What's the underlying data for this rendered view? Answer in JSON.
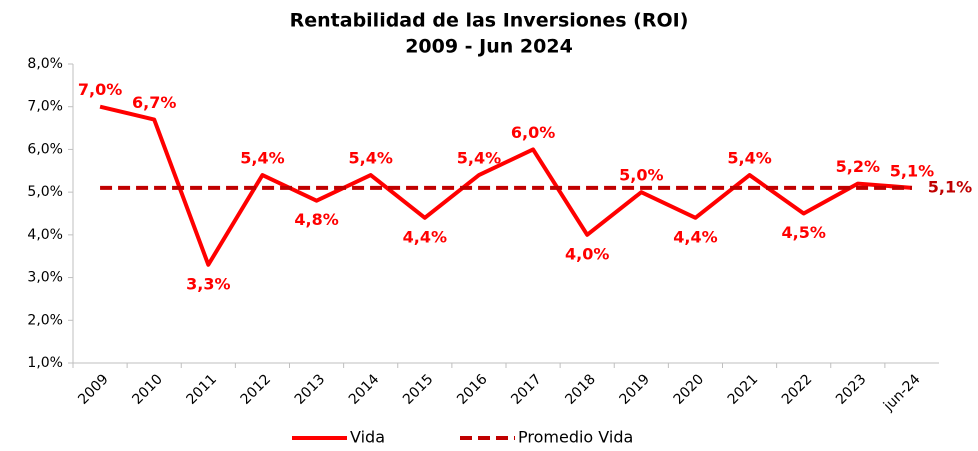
{
  "chart_data": {
    "type": "line",
    "title": "Rentabilidad de las Inversiones (ROI)",
    "subtitle": "2009 - Jun 2024",
    "categories": [
      "2009",
      "2010",
      "2011",
      "2012",
      "2013",
      "2014",
      "2015",
      "2016",
      "2017",
      "2018",
      "2019",
      "2020",
      "2021",
      "2022",
      "2023",
      "jun-24"
    ],
    "series": [
      {
        "name": "Vida",
        "color": "#ff0000",
        "dash": false,
        "values": [
          7.0,
          6.7,
          3.3,
          5.4,
          4.8,
          5.4,
          4.4,
          5.4,
          6.0,
          4.0,
          5.0,
          4.4,
          5.4,
          4.5,
          5.2,
          5.1
        ],
        "value_labels": [
          "7,0%",
          "6,7%",
          "3,3%",
          "5,4%",
          "4,8%",
          "5,4%",
          "4,4%",
          "5,4%",
          "6,0%",
          "4,0%",
          "5,0%",
          "4,4%",
          "5,4%",
          "4,5%",
          "5,2%",
          "5,1%"
        ]
      },
      {
        "name": "Promedio Vida",
        "color": "#c00000",
        "dash": true,
        "values": [
          5.1,
          5.1,
          5.1,
          5.1,
          5.1,
          5.1,
          5.1,
          5.1,
          5.1,
          5.1,
          5.1,
          5.1,
          5.1,
          5.1,
          5.1,
          5.1
        ],
        "value_labels": [
          null,
          null,
          null,
          null,
          null,
          null,
          null,
          null,
          null,
          null,
          null,
          null,
          null,
          null,
          null,
          "5,1%"
        ]
      }
    ],
    "ylim": [
      1,
      8
    ],
    "yticks": [
      {
        "value": 1,
        "label": "1,0%"
      },
      {
        "value": 2,
        "label": "2,0%"
      },
      {
        "value": 3,
        "label": "3,0%"
      },
      {
        "value": 4,
        "label": "4,0%"
      },
      {
        "value": 5,
        "label": "5,0%"
      },
      {
        "value": 6,
        "label": "6,0%"
      },
      {
        "value": 7,
        "label": "7,0%"
      },
      {
        "value": 8,
        "label": "8,0%"
      }
    ],
    "legend": "bottom"
  }
}
